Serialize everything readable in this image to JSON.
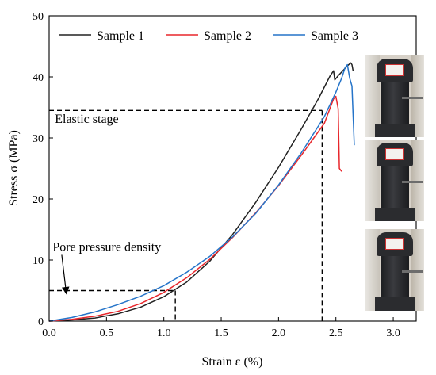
{
  "chart_data": {
    "type": "line",
    "xlabel": "Strain ε (%)",
    "ylabel": "Stress σ (MPa)",
    "xlim": [
      0,
      3.2
    ],
    "ylim": [
      0,
      50
    ],
    "xticks": [
      "0.0",
      "0.5",
      "1.0",
      "1.5",
      "2.0",
      "2.5",
      "3.0"
    ],
    "yticks": [
      "0",
      "10",
      "20",
      "30",
      "40",
      "50"
    ],
    "legend_position": "top",
    "series": [
      {
        "name": "Sample 1",
        "color": "#222222",
        "x": [
          0.0,
          0.2,
          0.4,
          0.6,
          0.8,
          1.0,
          1.2,
          1.4,
          1.6,
          1.8,
          2.0,
          2.2,
          2.35,
          2.45,
          2.48,
          2.49,
          2.52,
          2.6,
          2.63,
          2.64,
          2.65
        ],
        "y": [
          0.0,
          0.2,
          0.5,
          1.2,
          2.3,
          4.0,
          6.4,
          9.8,
          14.2,
          19.4,
          25.2,
          31.5,
          36.5,
          40.2,
          41.0,
          39.5,
          40.2,
          41.8,
          42.3,
          42.0,
          41.0
        ]
      },
      {
        "name": "Sample 2",
        "color": "#e8262b",
        "x": [
          0.0,
          0.2,
          0.4,
          0.6,
          0.8,
          1.0,
          1.2,
          1.4,
          1.6,
          1.8,
          2.0,
          2.2,
          2.4,
          2.48,
          2.5,
          2.52,
          2.53,
          2.55
        ],
        "y": [
          0.0,
          0.3,
          0.8,
          1.6,
          2.9,
          4.7,
          7.1,
          10.1,
          13.7,
          17.7,
          22.2,
          27.2,
          32.4,
          36.4,
          36.8,
          34.8,
          25.0,
          24.5
        ]
      },
      {
        "name": "Sample 3",
        "color": "#2574c9",
        "x": [
          0.0,
          0.2,
          0.4,
          0.6,
          0.8,
          1.0,
          1.2,
          1.4,
          1.6,
          1.8,
          2.0,
          2.2,
          2.4,
          2.5,
          2.55,
          2.58,
          2.6,
          2.62,
          2.64,
          2.66
        ],
        "y": [
          0.0,
          0.6,
          1.5,
          2.7,
          4.1,
          5.8,
          8.0,
          10.6,
          13.8,
          17.6,
          22.3,
          27.6,
          33.5,
          37.5,
          39.8,
          41.5,
          42.0,
          39.8,
          38.5,
          28.8
        ]
      }
    ],
    "reference_lines": [
      {
        "y": 5,
        "x_end": 1.1
      },
      {
        "y": 34.5,
        "x_end": 2.38
      }
    ],
    "annotations": [
      {
        "text": "Elastic stage",
        "x": 0.05,
        "y": 32.5
      },
      {
        "text": "Pore pressure density",
        "x": 0.03,
        "y": 11.5,
        "arrow_to": [
          0.15,
          4.5
        ]
      }
    ]
  }
}
